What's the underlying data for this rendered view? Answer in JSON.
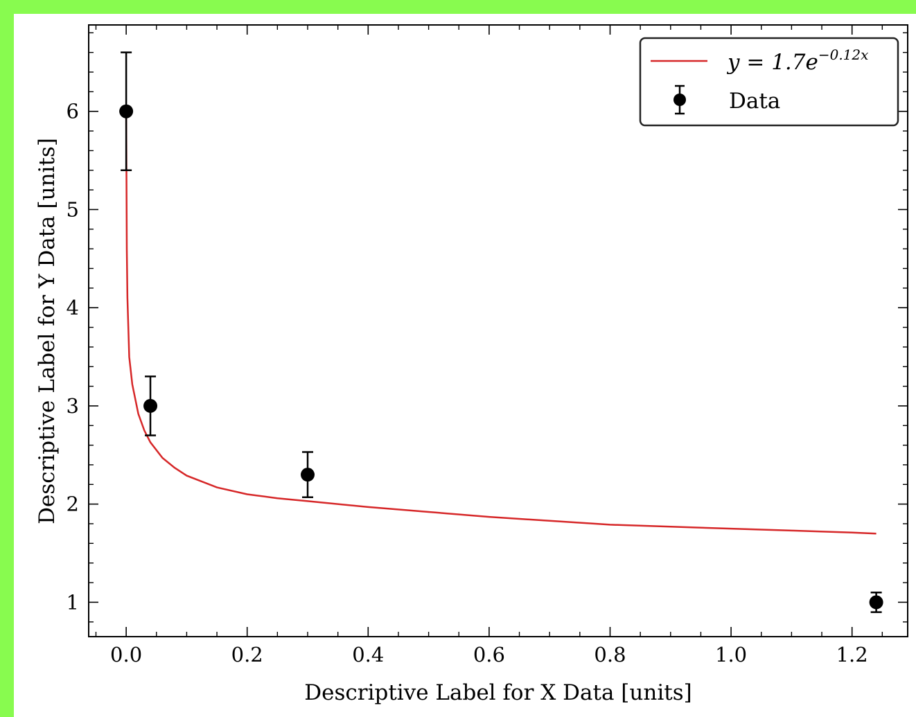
{
  "colors": {
    "frame_background": "#88fb4f",
    "plot_background": "#ffffff",
    "fit_line": "#d62728",
    "data_markers": "#000000"
  },
  "chart_data": {
    "type": "scatter",
    "title": "",
    "xlabel": "Descriptive Label for X Data [units]",
    "ylabel": "Descriptive Label for Y Data [units]",
    "xlim": [
      -0.062,
      1.292
    ],
    "ylim": [
      0.65,
      6.88
    ],
    "xticks": [
      0.0,
      0.2,
      0.4,
      0.6,
      0.8,
      1.0,
      1.2
    ],
    "xtick_labels": [
      "0.0",
      "0.2",
      "0.4",
      "0.6",
      "0.8",
      "1.0",
      "1.2"
    ],
    "yticks": [
      1,
      2,
      3,
      4,
      5,
      6
    ],
    "ytick_labels": [
      "1",
      "2",
      "3",
      "4",
      "5",
      "6"
    ],
    "grid": false,
    "legend_position": "top-right",
    "series": [
      {
        "name": "Data",
        "kind": "errorbar",
        "x": [
          0.0,
          0.04,
          0.3,
          1.24
        ],
        "y": [
          6.0,
          3.0,
          2.3,
          1.0
        ],
        "yerr": [
          0.6,
          0.3,
          0.23,
          0.1
        ]
      },
      {
        "name": "y = 1.7e^{-0.12x}",
        "kind": "line",
        "x": [
          0.0,
          0.001,
          0.002,
          0.005,
          0.01,
          0.02,
          0.03,
          0.04,
          0.06,
          0.08,
          0.1,
          0.15,
          0.2,
          0.25,
          0.3,
          0.4,
          0.5,
          0.6,
          0.7,
          0.8,
          0.9,
          1.0,
          1.1,
          1.2,
          1.24
        ],
        "y": [
          6.0,
          4.6,
          4.1,
          3.5,
          3.22,
          2.92,
          2.75,
          2.63,
          2.47,
          2.37,
          2.29,
          2.17,
          2.1,
          2.06,
          2.03,
          1.97,
          1.92,
          1.87,
          1.83,
          1.79,
          1.77,
          1.75,
          1.73,
          1.71,
          1.7
        ]
      }
    ]
  },
  "legend": {
    "fit_label_prefix": "y = 1.7e",
    "fit_label_exponent": "−0.12x",
    "data_label": "Data"
  }
}
